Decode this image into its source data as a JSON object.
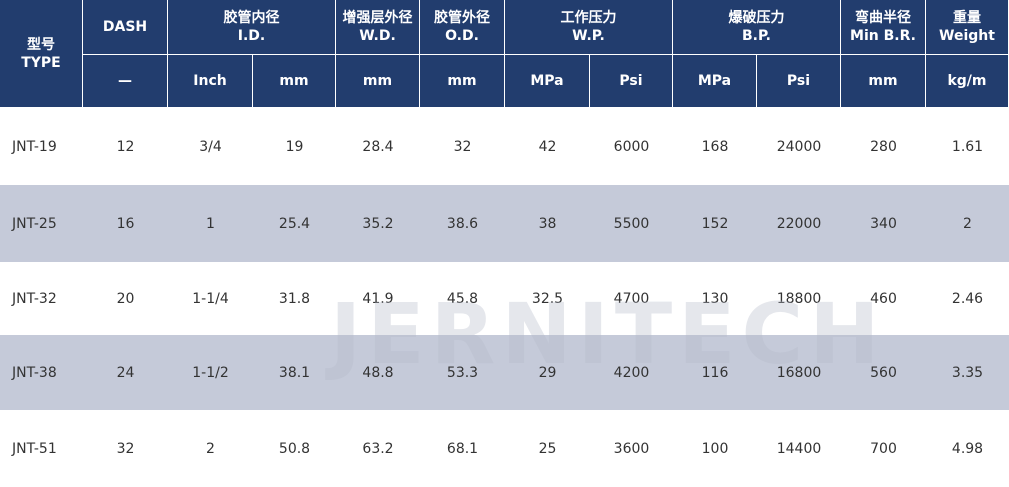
{
  "header": {
    "top": [
      [
        "型号",
        "TYPE"
      ],
      [
        "DASH"
      ],
      [
        "胶管内径",
        "I.D."
      ],
      [
        "增强层外径",
        "W.D."
      ],
      [
        "胶管外径",
        "O.D."
      ],
      [
        "工作压力",
        "W.P."
      ],
      [
        "爆破压力",
        "B.P."
      ],
      [
        "弯曲半径",
        "Min B.R."
      ],
      [
        "重量",
        "Weight"
      ]
    ],
    "units": [
      "—",
      "Inch",
      "mm",
      "mm",
      "mm",
      "MPa",
      "Psi",
      "MPa",
      "Psi",
      "mm",
      "kg/m"
    ]
  },
  "table": {
    "rows": [
      [
        "JNT-19",
        "12",
        "3/4",
        "19",
        "28.4",
        "32",
        "42",
        "6000",
        "168",
        "24000",
        "280",
        "1.61"
      ],
      [
        "JNT-25",
        "16",
        "1",
        "25.4",
        "35.2",
        "38.6",
        "38",
        "5500",
        "152",
        "22000",
        "340",
        "2"
      ],
      [
        "JNT-32",
        "20",
        "1-1/4",
        "31.8",
        "41.9",
        "45.8",
        "32.5",
        "4700",
        "130",
        "18800",
        "460",
        "2.46"
      ],
      [
        "JNT-38",
        "24",
        "1-1/2",
        "38.1",
        "48.8",
        "53.3",
        "29",
        "4200",
        "116",
        "16800",
        "560",
        "3.35"
      ],
      [
        "JNT-51",
        "32",
        "2",
        "50.8",
        "63.2",
        "68.1",
        "25",
        "3600",
        "100",
        "14400",
        "700",
        "4.98"
      ]
    ]
  },
  "watermark": "JERNITECH"
}
